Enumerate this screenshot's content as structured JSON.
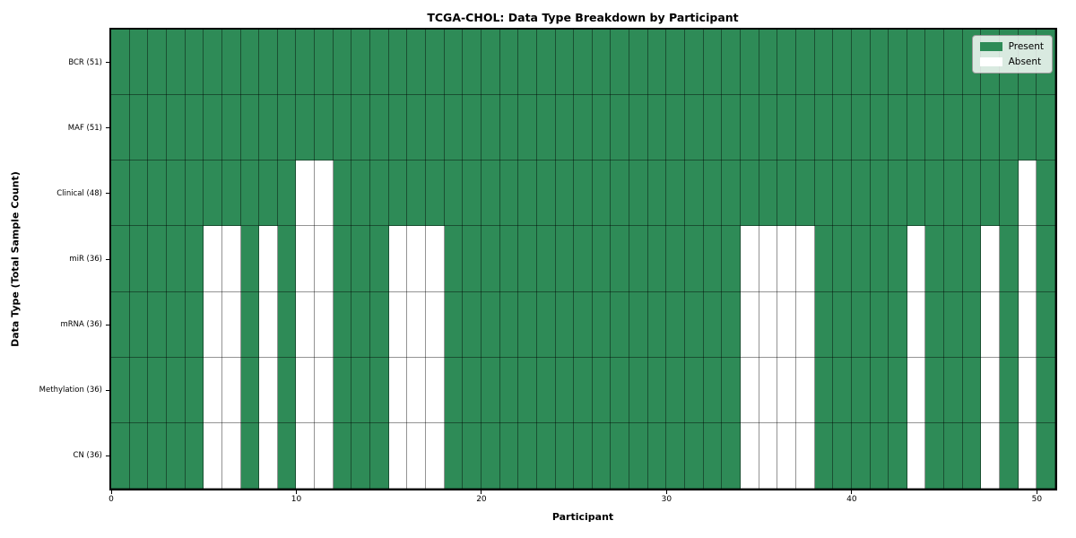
{
  "chart_data": {
    "type": "heatmap",
    "title": "TCGA-CHOL: Data Type Breakdown by Participant",
    "xlabel": "Participant",
    "ylabel": "Data Type (Total Sample Count)",
    "x_range": [
      0,
      51
    ],
    "x_ticks": [
      0,
      10,
      20,
      30,
      40,
      50
    ],
    "n_participants": 51,
    "grid": true,
    "legend_labels": [
      "Present",
      "Absent"
    ],
    "legend_position": "upper right",
    "colors": {
      "present": "#2e8b57",
      "absent": "#ffffff",
      "grid": "rgba(0,0,0,0.42)",
      "border": "#000000"
    },
    "rows": [
      {
        "label": "BCR (51)",
        "total_present": 51,
        "absent_participants": []
      },
      {
        "label": "MAF (51)",
        "total_present": 51,
        "absent_participants": []
      },
      {
        "label": "Clinical (48)",
        "total_present": 48,
        "absent_participants": [
          10,
          11,
          49
        ]
      },
      {
        "label": "miR (36)",
        "total_present": 36,
        "absent_participants": [
          5,
          6,
          8,
          10,
          11,
          15,
          16,
          17,
          34,
          35,
          36,
          37,
          43,
          47,
          49
        ]
      },
      {
        "label": "mRNA (36)",
        "total_present": 36,
        "absent_participants": [
          5,
          6,
          8,
          10,
          11,
          15,
          16,
          17,
          34,
          35,
          36,
          37,
          43,
          47,
          49
        ]
      },
      {
        "label": "Methylation (36)",
        "total_present": 36,
        "absent_participants": [
          5,
          6,
          8,
          10,
          11,
          15,
          16,
          17,
          34,
          35,
          36,
          37,
          43,
          47,
          49
        ]
      },
      {
        "label": "CN (36)",
        "total_present": 36,
        "absent_participants": [
          5,
          6,
          8,
          10,
          11,
          15,
          16,
          17,
          34,
          35,
          36,
          37,
          43,
          47,
          49
        ]
      }
    ]
  }
}
